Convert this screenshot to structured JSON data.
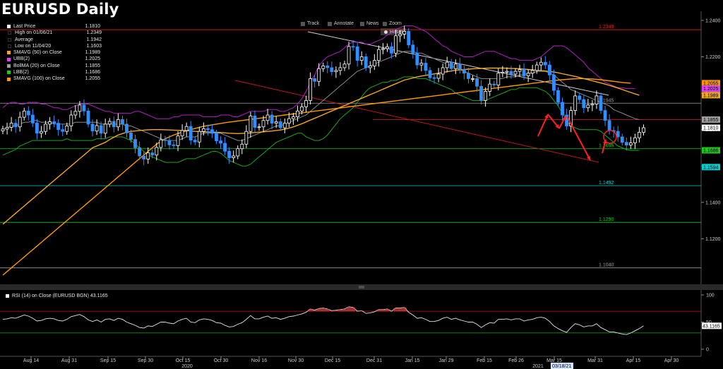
{
  "title": "EURUSD Daily",
  "toolbar": {
    "track": "Track",
    "annotate": "Annotate",
    "news": "News",
    "zoom": "Zoom",
    "reset": "Reset"
  },
  "legend": [
    {
      "label": "Last Price",
      "value": "1.1810",
      "color": "#ffffff"
    },
    {
      "label": "High on 01/06/21",
      "value": "1.2349",
      "color": "#000000"
    },
    {
      "label": "Average",
      "value": "1.1942",
      "color": "#000000"
    },
    {
      "label": "Low on 11/04/20",
      "value": "1.1603",
      "color": "#000000"
    },
    {
      "label": "SMAVG (50)  on Close",
      "value": "1.1989",
      "color": "#f5a623"
    },
    {
      "label": "UBB(2)",
      "value": "1.2025",
      "color": "#e040fb"
    },
    {
      "label": "BollMA (20)  on Close",
      "value": "1.1855",
      "color": "#9e9e9e"
    },
    {
      "label": "LBB(2)",
      "value": "1.1686",
      "color": "#1ec81e"
    },
    {
      "label": "SMAVG (100)  on Close",
      "value": "1.2055",
      "color": "#ff9800"
    }
  ],
  "rsi_legend": "RSI (14)  on Close (EURUSD BGN)  43.1165",
  "colors": {
    "bull": "#ffffff",
    "bear": "#2f8fff",
    "sma50": "#f5a623",
    "sma100": "#ff9800",
    "ubb": "#b21fc4",
    "bollma": "#8a8a8a",
    "lbb": "#1aa81a",
    "red_line": "#e02020",
    "arrow": "#ff2020"
  },
  "chart_data": [
    {
      "type": "candlestick",
      "title": "EURUSD Daily",
      "ylim": [
        1.1,
        1.245
      ],
      "y_ticks": [
        1.24,
        1.22,
        1.2,
        1.18,
        1.16,
        1.14,
        1.12
      ],
      "x_ticks": [
        "Aug 14",
        "Aug 31",
        "Sep 15",
        "Sep 30",
        "Oct 15",
        "Oct 30",
        "Nov 16",
        "Nov 30",
        "Dec 15",
        "Dec 31",
        "Jan 15",
        "Jan 29",
        "Feb 15",
        "Feb 26",
        "Mar 15",
        "Mar 31",
        "Apr 15",
        "Apr 30"
      ],
      "year_labels": [
        "2020",
        "2021"
      ],
      "date_highlight": "03/18/21",
      "close": [
        1.1803,
        1.1812,
        1.1835,
        1.1815,
        1.1868,
        1.1902,
        1.188,
        1.1836,
        1.178,
        1.179,
        1.183,
        1.1843,
        1.1835,
        1.18,
        1.179,
        1.182,
        1.188,
        1.19,
        1.1935,
        1.1902,
        1.183,
        1.1792,
        1.1822,
        1.178,
        1.183,
        1.1845,
        1.1815,
        1.1855,
        1.183,
        1.1782,
        1.1746,
        1.17,
        1.1655,
        1.1638,
        1.1672,
        1.166,
        1.1702,
        1.1744,
        1.174,
        1.1716,
        1.1712,
        1.1765,
        1.1795,
        1.1817,
        1.1742,
        1.1732,
        1.179,
        1.1805,
        1.18,
        1.178,
        1.1738,
        1.1725,
        1.1681,
        1.1645,
        1.1655,
        1.1695,
        1.172,
        1.179,
        1.1875,
        1.1812,
        1.1815,
        1.185,
        1.188,
        1.1835,
        1.1843,
        1.181,
        1.1835,
        1.186,
        1.187,
        1.1902,
        1.1925,
        1.196,
        1.208,
        1.2065,
        1.2135,
        1.215,
        1.214,
        1.2118,
        1.2125,
        1.214,
        1.216,
        1.2257,
        1.2255,
        1.218,
        1.22,
        1.214,
        1.215,
        1.218,
        1.224,
        1.2245,
        1.2255,
        1.222,
        1.2315,
        1.2325,
        1.234,
        1.2265,
        1.222,
        1.2155,
        1.2165,
        1.2125,
        1.2085,
        1.2082,
        1.2105,
        1.214,
        1.217,
        1.2135,
        1.216,
        1.213,
        1.211,
        1.208,
        1.208,
        1.2038,
        1.196,
        1.201,
        1.205,
        1.2045,
        1.211,
        1.2115,
        1.212,
        1.2105,
        1.212,
        1.213,
        1.2095,
        1.211,
        1.2125,
        1.2155,
        1.217,
        1.2155,
        1.21,
        1.2015,
        1.195,
        1.188,
        1.182,
        1.1905,
        1.1985,
        1.1965,
        1.192,
        1.1935,
        1.194,
        1.1985,
        1.1905,
        1.185,
        1.1795,
        1.179,
        1.176,
        1.173,
        1.1715,
        1.1727,
        1.1755,
        1.1785,
        1.181
      ],
      "sma50": [
        1.128,
        1.13,
        1.132,
        1.134,
        1.136,
        1.138,
        1.14,
        1.142,
        1.144,
        1.146,
        1.148,
        1.15,
        1.152,
        1.154,
        1.156,
        1.158,
        1.16,
        1.162,
        1.164,
        1.166,
        1.168,
        1.17,
        1.171,
        1.172,
        1.173,
        1.1745,
        1.1758,
        1.177,
        1.1778,
        1.1785,
        1.179,
        1.1792,
        1.1795,
        1.1797,
        1.1799,
        1.18,
        1.18,
        1.18,
        1.1799,
        1.1798,
        1.1797,
        1.1796,
        1.1795,
        1.1794,
        1.1792,
        1.179,
        1.1789,
        1.1788,
        1.1787,
        1.1786,
        1.1785,
        1.1784,
        1.1782,
        1.178,
        1.1779,
        1.1778,
        1.1779,
        1.178,
        1.1782,
        1.1784,
        1.1786,
        1.1788,
        1.179,
        1.1792,
        1.1795,
        1.1798,
        1.1802,
        1.1808,
        1.1815,
        1.1823,
        1.1832,
        1.1842,
        1.1852,
        1.1862,
        1.1872,
        1.1882,
        1.1892,
        1.1902,
        1.1912,
        1.1922,
        1.1932,
        1.1942,
        1.1952,
        1.1962,
        1.1972,
        1.1982,
        1.1992,
        1.2002,
        1.2012,
        1.2022,
        1.2032,
        1.2042,
        1.2052,
        1.2062,
        1.2072,
        1.2078,
        1.2084,
        1.209,
        1.2094,
        1.2098,
        1.2102,
        1.2106,
        1.211,
        1.2114,
        1.2118,
        1.2122,
        1.2126,
        1.2128,
        1.213,
        1.2132,
        1.2134,
        1.2135,
        1.2136,
        1.2137,
        1.2138,
        1.2138,
        1.2138,
        1.2138,
        1.2137,
        1.2136,
        1.2135,
        1.2134,
        1.2132,
        1.213,
        1.2128,
        1.2126,
        1.2124,
        1.2122,
        1.2119,
        1.2116,
        1.2112,
        1.2107,
        1.2102,
        1.2097,
        1.2092,
        1.2086,
        1.208,
        1.2074,
        1.2068,
        1.2062,
        1.2056,
        1.205,
        1.2043,
        1.2036,
        1.2028,
        1.202,
        1.2012,
        1.2004,
        1.1996,
        1.1989
      ],
      "sma100": [
        1.1,
        1.102,
        1.104,
        1.106,
        1.108,
        1.11,
        1.112,
        1.114,
        1.116,
        1.118,
        1.12,
        1.122,
        1.124,
        1.126,
        1.128,
        1.13,
        1.132,
        1.134,
        1.136,
        1.138,
        1.14,
        1.142,
        1.144,
        1.146,
        1.148,
        1.15,
        1.152,
        1.154,
        1.156,
        1.158,
        1.16,
        1.162,
        1.164,
        1.166,
        1.168,
        1.17,
        1.172,
        1.1735,
        1.175,
        1.176,
        1.177,
        1.1778,
        1.1786,
        1.1794,
        1.18,
        1.1806,
        1.1812,
        1.1818,
        1.1822,
        1.1826,
        1.183,
        1.1834,
        1.1838,
        1.1841,
        1.1844,
        1.1847,
        1.185,
        1.1853,
        1.1856,
        1.1859,
        1.1862,
        1.1865,
        1.1868,
        1.1871,
        1.1874,
        1.1877,
        1.188,
        1.1883,
        1.1886,
        1.1889,
        1.1892,
        1.1895,
        1.1898,
        1.1901,
        1.1904,
        1.1907,
        1.191,
        1.1913,
        1.1916,
        1.1919,
        1.1922,
        1.1925,
        1.1928,
        1.1931,
        1.1934,
        1.1937,
        1.194,
        1.1943,
        1.1946,
        1.1949,
        1.1952,
        1.1955,
        1.1958,
        1.1961,
        1.1964,
        1.1967,
        1.197,
        1.1973,
        1.1976,
        1.1979,
        1.1982,
        1.1985,
        1.1988,
        1.1991,
        1.1994,
        1.1997,
        1.2,
        1.2003,
        1.2006,
        1.2009,
        1.2012,
        1.2015,
        1.2018,
        1.2021,
        1.2024,
        1.2027,
        1.203,
        1.2033,
        1.2036,
        1.2039,
        1.2042,
        1.2045,
        1.2048,
        1.2051,
        1.2054,
        1.2057,
        1.206,
        1.2063,
        1.2066,
        1.2069,
        1.2072,
        1.2074,
        1.2076,
        1.2078,
        1.2079,
        1.208,
        1.208,
        1.2079,
        1.2078,
        1.2076,
        1.2074,
        1.2071,
        1.2068,
        1.2065,
        1.2062,
        1.2059,
        1.2057,
        1.2055
      ],
      "ubb": [
        1.192,
        1.194,
        1.195,
        1.195,
        1.194,
        1.194,
        1.195,
        1.195,
        1.195,
        1.194,
        1.194,
        1.193,
        1.192,
        1.192,
        1.191,
        1.191,
        1.192,
        1.193,
        1.194,
        1.194,
        1.194,
        1.193,
        1.192,
        1.191,
        1.19,
        1.19,
        1.189,
        1.189,
        1.189,
        1.189,
        1.189,
        1.19,
        1.19,
        1.189,
        1.188,
        1.187,
        1.186,
        1.186,
        1.186,
        1.186,
        1.187,
        1.187,
        1.188,
        1.188,
        1.188,
        1.188,
        1.188,
        1.187,
        1.187,
        1.187,
        1.187,
        1.188,
        1.188,
        1.188,
        1.187,
        1.187,
        1.188,
        1.189,
        1.19,
        1.19,
        1.19,
        1.19,
        1.191,
        1.191,
        1.191,
        1.19,
        1.19,
        1.191,
        1.192,
        1.194,
        1.197,
        1.201,
        1.206,
        1.21,
        1.215,
        1.218,
        1.22,
        1.221,
        1.222,
        1.223,
        1.225,
        1.227,
        1.228,
        1.228,
        1.228,
        1.227,
        1.227,
        1.228,
        1.229,
        1.23,
        1.232,
        1.233,
        1.235,
        1.236,
        1.237,
        1.237,
        1.237,
        1.236,
        1.235,
        1.234,
        1.232,
        1.23,
        1.228,
        1.226,
        1.225,
        1.223,
        1.222,
        1.221,
        1.22,
        1.22,
        1.22,
        1.221,
        1.222,
        1.223,
        1.223,
        1.223,
        1.222,
        1.221,
        1.22,
        1.219,
        1.219,
        1.218,
        1.218,
        1.218,
        1.218,
        1.219,
        1.22,
        1.222,
        1.224,
        1.226,
        1.226,
        1.226,
        1.225,
        1.223,
        1.221,
        1.219,
        1.217,
        1.214,
        1.212,
        1.21,
        1.208,
        1.206,
        1.205,
        1.204,
        1.203,
        1.203,
        1.2025,
        1.2025,
        1.2025
      ],
      "bollma": [
        1.18,
        1.181,
        1.182,
        1.182,
        1.183,
        1.184,
        1.184,
        1.185,
        1.185,
        1.184,
        1.184,
        1.184,
        1.183,
        1.183,
        1.183,
        1.183,
        1.183,
        1.184,
        1.184,
        1.184,
        1.184,
        1.184,
        1.184,
        1.183,
        1.183,
        1.183,
        1.183,
        1.183,
        1.183,
        1.182,
        1.182,
        1.181,
        1.18,
        1.179,
        1.178,
        1.177,
        1.176,
        1.175,
        1.174,
        1.174,
        1.174,
        1.174,
        1.175,
        1.176,
        1.176,
        1.176,
        1.177,
        1.178,
        1.178,
        1.178,
        1.178,
        1.178,
        1.177,
        1.176,
        1.175,
        1.174,
        1.174,
        1.175,
        1.176,
        1.177,
        1.178,
        1.179,
        1.18,
        1.181,
        1.182,
        1.182,
        1.183,
        1.184,
        1.185,
        1.186,
        1.187,
        1.188,
        1.19,
        1.192,
        1.194,
        1.196,
        1.198,
        1.2,
        1.202,
        1.204,
        1.206,
        1.208,
        1.21,
        1.212,
        1.213,
        1.214,
        1.215,
        1.216,
        1.217,
        1.218,
        1.219,
        1.22,
        1.221,
        1.222,
        1.223,
        1.223,
        1.223,
        1.222,
        1.222,
        1.221,
        1.22,
        1.219,
        1.218,
        1.217,
        1.216,
        1.215,
        1.214,
        1.213,
        1.212,
        1.211,
        1.21,
        1.209,
        1.208,
        1.208,
        1.208,
        1.208,
        1.208,
        1.208,
        1.209,
        1.209,
        1.209,
        1.21,
        1.21,
        1.211,
        1.211,
        1.212,
        1.212,
        1.212,
        1.211,
        1.21,
        1.208,
        1.206,
        1.204,
        1.202,
        1.201,
        1.2,
        1.199,
        1.198,
        1.197,
        1.196,
        1.195,
        1.194,
        1.193,
        1.191,
        1.19,
        1.189,
        1.188,
        1.187,
        1.186,
        1.1855
      ],
      "lbb": [
        1.166,
        1.167,
        1.168,
        1.169,
        1.171,
        1.172,
        1.173,
        1.174,
        1.174,
        1.174,
        1.174,
        1.174,
        1.174,
        1.174,
        1.174,
        1.175,
        1.174,
        1.174,
        1.174,
        1.174,
        1.174,
        1.174,
        1.175,
        1.175,
        1.175,
        1.176,
        1.176,
        1.176,
        1.176,
        1.175,
        1.174,
        1.172,
        1.17,
        1.168,
        1.166,
        1.165,
        1.164,
        1.163,
        1.162,
        1.162,
        1.162,
        1.162,
        1.163,
        1.164,
        1.164,
        1.164,
        1.165,
        1.166,
        1.167,
        1.168,
        1.168,
        1.167,
        1.165,
        1.163,
        1.162,
        1.161,
        1.16,
        1.16,
        1.161,
        1.163,
        1.165,
        1.167,
        1.169,
        1.171,
        1.173,
        1.174,
        1.175,
        1.176,
        1.177,
        1.178,
        1.178,
        1.176,
        1.175,
        1.174,
        1.174,
        1.175,
        1.177,
        1.18,
        1.183,
        1.186,
        1.188,
        1.19,
        1.192,
        1.195,
        1.198,
        1.201,
        1.203,
        1.204,
        1.205,
        1.206,
        1.206,
        1.207,
        1.207,
        1.208,
        1.209,
        1.209,
        1.209,
        1.208,
        1.208,
        1.208,
        1.207,
        1.206,
        1.205,
        1.204,
        1.203,
        1.202,
        1.2,
        1.199,
        1.198,
        1.197,
        1.196,
        1.196,
        1.196,
        1.196,
        1.197,
        1.198,
        1.199,
        1.2,
        1.201,
        1.202,
        1.202,
        1.203,
        1.203,
        1.203,
        1.203,
        1.203,
        1.202,
        1.201,
        1.199,
        1.196,
        1.193,
        1.189,
        1.185,
        1.182,
        1.181,
        1.18,
        1.18,
        1.18,
        1.18,
        1.18,
        1.179,
        1.177,
        1.175,
        1.173,
        1.171,
        1.17,
        1.169,
        1.1686,
        1.1686,
        1.1686
      ],
      "levels": [
        {
          "value": 1.2349,
          "label": "1.2349",
          "color": "#e02020"
        },
        {
          "value": 1.1945,
          "label": "1.1945",
          "color": "#9e9e9e"
        },
        {
          "value": 1.1855,
          "label": "",
          "color": "#e02020"
        },
        {
          "value": 1.1695,
          "label": "1.1695",
          "color": "#1ec81e"
        },
        {
          "value": 1.1492,
          "label": "1.1492",
          "color": "#00d0d0"
        },
        {
          "value": 1.129,
          "label": "1.1290",
          "color": "#1ec81e"
        },
        {
          "value": 1.104,
          "label": "1.1040",
          "color": "#9e9e9e"
        }
      ],
      "axis_tags": [
        {
          "value": 1.2055,
          "label": "1.2055",
          "bg": "#ff9800",
          "fg": "#000000"
        },
        {
          "value": 1.2025,
          "label": "1.2025",
          "bg": "#e040fb",
          "fg": "#000000"
        },
        {
          "value": 1.1989,
          "label": "1.1989",
          "bg": "#f5a623",
          "fg": "#000000"
        },
        {
          "value": 1.1855,
          "label": "1.1855",
          "bg": "#9e9e9e",
          "fg": "#000000"
        },
        {
          "value": 1.181,
          "label": "1.1810",
          "bg": "#ffffff",
          "fg": "#000000"
        },
        {
          "value": 1.1686,
          "label": "1.1686",
          "bg": "#1ec81e",
          "fg": "#000000"
        },
        {
          "value": 1.1594,
          "label": "1.1594",
          "bg": "#00d0d0",
          "fg": "#000000"
        }
      ]
    },
    {
      "type": "line",
      "title": "RSI (14)  on Close (EURUSD BGN)",
      "ylim": [
        0,
        100
      ],
      "y_ticks": [
        100,
        50,
        0
      ],
      "last_value": "43.1165",
      "overbought": 70,
      "oversold": 30,
      "values": [
        55,
        56,
        58,
        57,
        60,
        63,
        61,
        57,
        52,
        53,
        56,
        57,
        56,
        53,
        52,
        55,
        60,
        62,
        64,
        60,
        54,
        51,
        54,
        50,
        55,
        56,
        53,
        57,
        55,
        50,
        47,
        44,
        40,
        39,
        43,
        42,
        46,
        50,
        50,
        48,
        47,
        52,
        55,
        57,
        50,
        49,
        54,
        56,
        55,
        53,
        49,
        48,
        44,
        41,
        42,
        46,
        49,
        55,
        62,
        56,
        56,
        59,
        61,
        57,
        58,
        55,
        57,
        60,
        61,
        63,
        65,
        68,
        74,
        72,
        75,
        76,
        74,
        71,
        72,
        73,
        74,
        78,
        77,
        70,
        71,
        66,
        67,
        69,
        73,
        73,
        74,
        70,
        76,
        76,
        77,
        68,
        63,
        57,
        58,
        55,
        51,
        51,
        53,
        57,
        59,
        55,
        57,
        54,
        52,
        50,
        50,
        46,
        40,
        45,
        49,
        48,
        55,
        55,
        56,
        54,
        56,
        56,
        52,
        54,
        55,
        58,
        59,
        57,
        51,
        43,
        38,
        34,
        31,
        40,
        47,
        45,
        41,
        43,
        43,
        47,
        40,
        36,
        32,
        32,
        30,
        28,
        27,
        30,
        34,
        38,
        43
      ]
    }
  ]
}
